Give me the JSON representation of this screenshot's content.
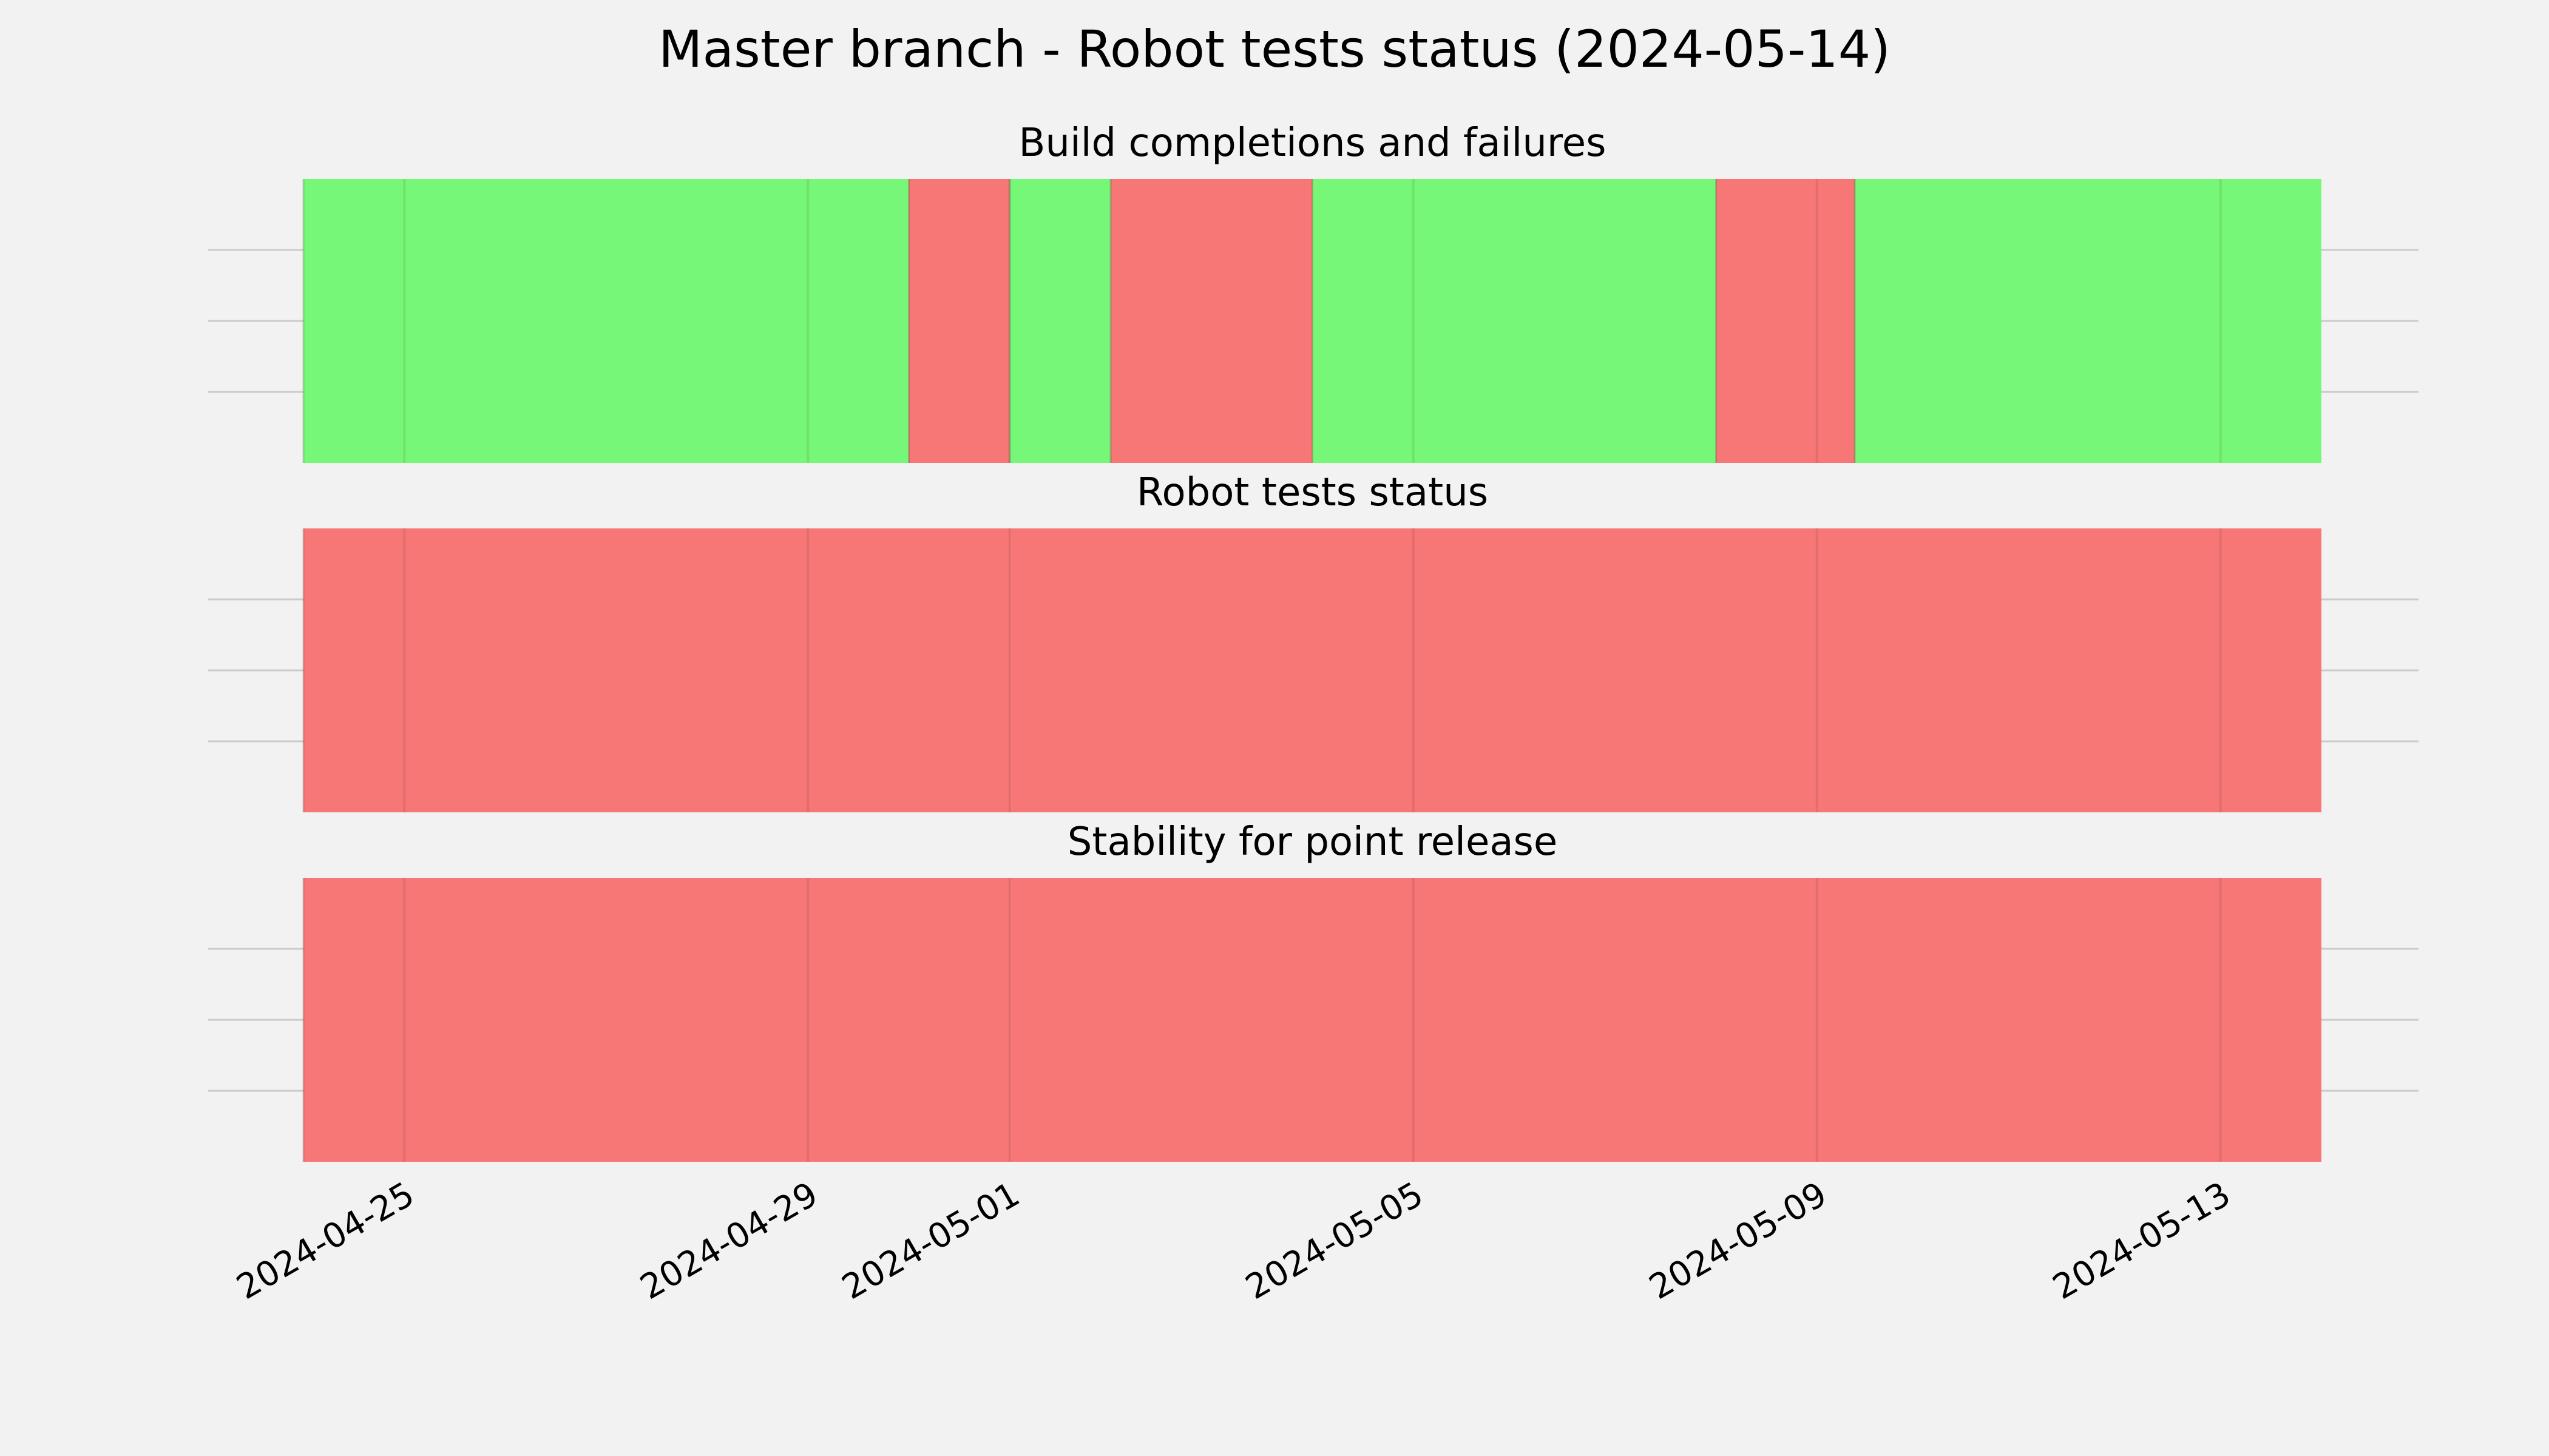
{
  "chart_data": {
    "type": "timeline",
    "title": "Master branch - Robot tests status (2024-05-14)",
    "x_range": [
      "2024-04-24T00:00",
      "2024-05-14T00:00"
    ],
    "x_ticks": [
      "2024-04-25",
      "2024-04-29",
      "2024-05-01",
      "2024-05-05",
      "2024-05-09",
      "2024-05-13"
    ],
    "grid": true,
    "colors": {
      "success": "#77f777",
      "failure": "#f77777"
    },
    "panels": [
      {
        "title": "Build completions and failures",
        "segments": [
          {
            "start": "2024-04-24T00:00",
            "end": "2024-04-30T00:00",
            "status": "success"
          },
          {
            "start": "2024-04-30T00:00",
            "end": "2024-05-01T00:00",
            "status": "failure"
          },
          {
            "start": "2024-05-01T00:00",
            "end": "2024-05-02T00:00",
            "status": "success"
          },
          {
            "start": "2024-05-02T00:00",
            "end": "2024-05-04T00:00",
            "status": "failure"
          },
          {
            "start": "2024-05-04T00:00",
            "end": "2024-05-08T00:00",
            "status": "success"
          },
          {
            "start": "2024-05-08T00:00",
            "end": "2024-05-09T09:00",
            "status": "failure"
          },
          {
            "start": "2024-05-09T09:00",
            "end": "2024-05-14T00:00",
            "status": "success"
          }
        ]
      },
      {
        "title": "Robot tests status",
        "segments": [
          {
            "start": "2024-04-24T00:00",
            "end": "2024-05-14T00:00",
            "status": "failure"
          }
        ]
      },
      {
        "title": "Stability for point release",
        "segments": [
          {
            "start": "2024-04-24T00:00",
            "end": "2024-05-14T00:00",
            "status": "failure"
          }
        ]
      }
    ]
  }
}
